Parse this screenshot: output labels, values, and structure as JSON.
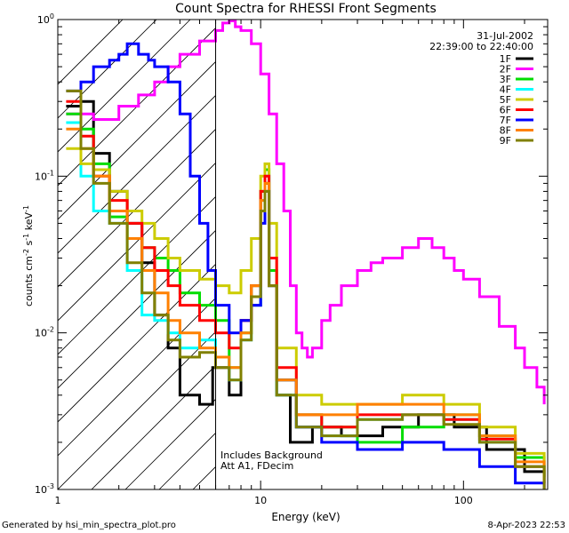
{
  "chart_data": {
    "type": "line",
    "title": "Count Spectra for RHESSI Front Segments",
    "xlabel": "Energy (keV)",
    "ylabel_parts": [
      "counts cm",
      "-2",
      " s",
      "-1",
      " keV",
      "-1"
    ],
    "xscale": "log",
    "yscale": "log",
    "xlim": [
      1.0,
      260
    ],
    "ylim": [
      0.001,
      1.0
    ],
    "x_tick_labels": [
      "1",
      "10",
      "100"
    ],
    "y_tick_labels": [
      {
        "mant": "10",
        "exp": "-3",
        "value": 0.001
      },
      {
        "mant": "10",
        "exp": "-2",
        "value": 0.01
      },
      {
        "mant": "10",
        "exp": "-1",
        "value": 0.1
      },
      {
        "mant": "10",
        "exp": "0",
        "value": 1.0
      }
    ],
    "date": "31-Jul-2002",
    "time_range": "22:39:00 to 22:40:00",
    "annotations": [
      "Includes Background",
      "Att A1, FDecim"
    ],
    "vertical_line_energy": 6.0,
    "legend_placement": "top-right",
    "series": [
      {
        "name": "1F",
        "color": "#000000",
        "values": [
          [
            1.1,
            0.28
          ],
          [
            1.3,
            0.3
          ],
          [
            1.5,
            0.14
          ],
          [
            1.8,
            0.08
          ],
          [
            2.2,
            0.05
          ],
          [
            2.6,
            0.028
          ],
          [
            3.0,
            0.013
          ],
          [
            3.5,
            0.008
          ],
          [
            4.0,
            0.004
          ],
          [
            5.0,
            0.0035
          ],
          [
            5.8,
            0.006
          ],
          [
            7.0,
            0.004
          ],
          [
            8.0,
            0.012
          ],
          [
            9.0,
            0.015
          ],
          [
            10.0,
            0.06
          ],
          [
            10.5,
            0.09
          ],
          [
            11.0,
            0.02
          ],
          [
            12.0,
            0.004
          ],
          [
            14.0,
            0.002
          ],
          [
            18.0,
            0.0025
          ],
          [
            25.0,
            0.0022
          ],
          [
            40.0,
            0.0025
          ],
          [
            60.0,
            0.003
          ],
          [
            90.0,
            0.0025
          ],
          [
            130.0,
            0.0018
          ],
          [
            200.0,
            0.0013
          ],
          [
            250.0,
            0.0011
          ]
        ]
      },
      {
        "name": "2F",
        "color": "#ff00ff",
        "values": [
          [
            1.1,
            0.25
          ],
          [
            1.5,
            0.23
          ],
          [
            2.0,
            0.28
          ],
          [
            2.5,
            0.33
          ],
          [
            3.0,
            0.4
          ],
          [
            3.5,
            0.5
          ],
          [
            4.0,
            0.6
          ],
          [
            5.0,
            0.73
          ],
          [
            6.0,
            0.85
          ],
          [
            6.5,
            0.95
          ],
          [
            7.0,
            0.98
          ],
          [
            7.5,
            0.9
          ],
          [
            8.0,
            0.85
          ],
          [
            9.0,
            0.7
          ],
          [
            10.0,
            0.45
          ],
          [
            11.0,
            0.25
          ],
          [
            12.0,
            0.12
          ],
          [
            13.0,
            0.06
          ],
          [
            14.0,
            0.02
          ],
          [
            15.0,
            0.01
          ],
          [
            16.0,
            0.008
          ],
          [
            17.0,
            0.007
          ],
          [
            18.0,
            0.008
          ],
          [
            20.0,
            0.012
          ],
          [
            22.0,
            0.015
          ],
          [
            25.0,
            0.02
          ],
          [
            30.0,
            0.025
          ],
          [
            35.0,
            0.028
          ],
          [
            40.0,
            0.03
          ],
          [
            50.0,
            0.035
          ],
          [
            60.0,
            0.04
          ],
          [
            70.0,
            0.035
          ],
          [
            80.0,
            0.03
          ],
          [
            90.0,
            0.025
          ],
          [
            100.0,
            0.022
          ],
          [
            120.0,
            0.017
          ],
          [
            150.0,
            0.011
          ],
          [
            180.0,
            0.008
          ],
          [
            200.0,
            0.006
          ],
          [
            230.0,
            0.0045
          ],
          [
            250.0,
            0.0035
          ]
        ]
      },
      {
        "name": "3F",
        "color": "#00dd00",
        "values": [
          [
            1.1,
            0.25
          ],
          [
            1.3,
            0.2
          ],
          [
            1.5,
            0.12
          ],
          [
            1.8,
            0.055
          ],
          [
            2.2,
            0.04
          ],
          [
            2.6,
            0.035
          ],
          [
            3.0,
            0.03
          ],
          [
            3.5,
            0.025
          ],
          [
            4.0,
            0.018
          ],
          [
            5.0,
            0.015
          ],
          [
            6.0,
            0.012
          ],
          [
            7.0,
            0.006
          ],
          [
            8.0,
            0.01
          ],
          [
            9.0,
            0.02
          ],
          [
            10.0,
            0.08
          ],
          [
            10.5,
            0.11
          ],
          [
            11.0,
            0.025
          ],
          [
            12.0,
            0.005
          ],
          [
            15.0,
            0.003
          ],
          [
            20.0,
            0.0025
          ],
          [
            30.0,
            0.002
          ],
          [
            50.0,
            0.0025
          ],
          [
            80.0,
            0.003
          ],
          [
            120.0,
            0.0022
          ],
          [
            180.0,
            0.0016
          ],
          [
            250.0,
            0.0012
          ]
        ]
      },
      {
        "name": "4F",
        "color": "#00ffff",
        "values": [
          [
            1.1,
            0.22
          ],
          [
            1.3,
            0.1
          ],
          [
            1.5,
            0.06
          ],
          [
            1.8,
            0.05
          ],
          [
            2.2,
            0.025
          ],
          [
            2.6,
            0.013
          ],
          [
            3.0,
            0.012
          ],
          [
            3.5,
            0.01
          ],
          [
            4.0,
            0.008
          ],
          [
            5.0,
            0.009
          ],
          [
            6.0,
            0.007
          ],
          [
            7.0,
            0.005
          ],
          [
            8.0,
            0.009
          ],
          [
            9.0,
            0.015
          ],
          [
            10.0,
            0.07
          ],
          [
            10.5,
            0.1
          ],
          [
            11.0,
            0.02
          ],
          [
            12.0,
            0.004
          ],
          [
            15.0,
            0.0025
          ],
          [
            20.0,
            0.0022
          ],
          [
            30.0,
            0.0028
          ],
          [
            50.0,
            0.003
          ],
          [
            80.0,
            0.0028
          ],
          [
            120.0,
            0.002
          ],
          [
            180.0,
            0.0014
          ],
          [
            250.0,
            0.0011
          ]
        ]
      },
      {
        "name": "5F",
        "color": "#cccc00",
        "values": [
          [
            1.1,
            0.15
          ],
          [
            1.3,
            0.12
          ],
          [
            1.5,
            0.11
          ],
          [
            1.8,
            0.08
          ],
          [
            2.2,
            0.06
          ],
          [
            2.6,
            0.05
          ],
          [
            3.0,
            0.04
          ],
          [
            3.5,
            0.03
          ],
          [
            4.0,
            0.025
          ],
          [
            5.0,
            0.022
          ],
          [
            6.0,
            0.02
          ],
          [
            7.0,
            0.018
          ],
          [
            8.0,
            0.025
          ],
          [
            9.0,
            0.04
          ],
          [
            10.0,
            0.1
          ],
          [
            10.5,
            0.12
          ],
          [
            11.0,
            0.05
          ],
          [
            12.0,
            0.008
          ],
          [
            15.0,
            0.004
          ],
          [
            20.0,
            0.0035
          ],
          [
            30.0,
            0.0035
          ],
          [
            50.0,
            0.004
          ],
          [
            80.0,
            0.0035
          ],
          [
            120.0,
            0.0025
          ],
          [
            180.0,
            0.0017
          ],
          [
            250.0,
            0.0012
          ]
        ]
      },
      {
        "name": "6F",
        "color": "#ff0000",
        "values": [
          [
            1.1,
            0.3
          ],
          [
            1.3,
            0.18
          ],
          [
            1.5,
            0.1
          ],
          [
            1.8,
            0.07
          ],
          [
            2.2,
            0.05
          ],
          [
            2.6,
            0.035
          ],
          [
            3.0,
            0.025
          ],
          [
            3.5,
            0.02
          ],
          [
            4.0,
            0.015
          ],
          [
            5.0,
            0.012
          ],
          [
            6.0,
            0.01
          ],
          [
            7.0,
            0.008
          ],
          [
            8.0,
            0.012
          ],
          [
            9.0,
            0.02
          ],
          [
            10.0,
            0.08
          ],
          [
            10.5,
            0.1
          ],
          [
            11.0,
            0.03
          ],
          [
            12.0,
            0.006
          ],
          [
            15.0,
            0.003
          ],
          [
            20.0,
            0.0025
          ],
          [
            30.0,
            0.003
          ],
          [
            50.0,
            0.003
          ],
          [
            80.0,
            0.0028
          ],
          [
            120.0,
            0.0021
          ],
          [
            180.0,
            0.0014
          ],
          [
            250.0,
            0.001
          ]
        ]
      },
      {
        "name": "7F",
        "color": "#0000ff",
        "values": [
          [
            1.1,
            0.35
          ],
          [
            1.3,
            0.4
          ],
          [
            1.5,
            0.5
          ],
          [
            1.8,
            0.55
          ],
          [
            2.0,
            0.6
          ],
          [
            2.2,
            0.7
          ],
          [
            2.5,
            0.6
          ],
          [
            2.8,
            0.55
          ],
          [
            3.0,
            0.5
          ],
          [
            3.5,
            0.4
          ],
          [
            4.0,
            0.25
          ],
          [
            4.5,
            0.1
          ],
          [
            5.0,
            0.05
          ],
          [
            5.5,
            0.025
          ],
          [
            6.0,
            0.015
          ],
          [
            7.0,
            0.01
          ],
          [
            8.0,
            0.012
          ],
          [
            9.0,
            0.015
          ],
          [
            10.0,
            0.05
          ],
          [
            10.5,
            0.08
          ],
          [
            11.0,
            0.02
          ],
          [
            12.0,
            0.005
          ],
          [
            15.0,
            0.0025
          ],
          [
            20.0,
            0.002
          ],
          [
            30.0,
            0.0018
          ],
          [
            50.0,
            0.002
          ],
          [
            80.0,
            0.0018
          ],
          [
            120.0,
            0.0014
          ],
          [
            180.0,
            0.0011
          ],
          [
            250.0,
            0.001
          ]
        ]
      },
      {
        "name": "8F",
        "color": "#ff8000",
        "values": [
          [
            1.1,
            0.2
          ],
          [
            1.3,
            0.15
          ],
          [
            1.5,
            0.1
          ],
          [
            1.8,
            0.06
          ],
          [
            2.2,
            0.04
          ],
          [
            2.6,
            0.025
          ],
          [
            3.0,
            0.018
          ],
          [
            3.5,
            0.012
          ],
          [
            4.0,
            0.01
          ],
          [
            5.0,
            0.008
          ],
          [
            6.0,
            0.007
          ],
          [
            7.0,
            0.006
          ],
          [
            8.0,
            0.01
          ],
          [
            9.0,
            0.02
          ],
          [
            10.0,
            0.07
          ],
          [
            10.5,
            0.09
          ],
          [
            11.0,
            0.02
          ],
          [
            12.0,
            0.005
          ],
          [
            15.0,
            0.003
          ],
          [
            20.0,
            0.003
          ],
          [
            30.0,
            0.0035
          ],
          [
            50.0,
            0.0035
          ],
          [
            80.0,
            0.003
          ],
          [
            120.0,
            0.0022
          ],
          [
            180.0,
            0.0015
          ],
          [
            250.0,
            0.0011
          ]
        ]
      },
      {
        "name": "9F",
        "color": "#808000",
        "values": [
          [
            1.1,
            0.35
          ],
          [
            1.3,
            0.15
          ],
          [
            1.5,
            0.09
          ],
          [
            1.8,
            0.05
          ],
          [
            2.2,
            0.028
          ],
          [
            2.6,
            0.018
          ],
          [
            3.0,
            0.013
          ],
          [
            3.5,
            0.009
          ],
          [
            4.0,
            0.007
          ],
          [
            5.0,
            0.0075
          ],
          [
            6.0,
            0.006
          ],
          [
            7.0,
            0.005
          ],
          [
            8.0,
            0.009
          ],
          [
            9.0,
            0.017
          ],
          [
            10.0,
            0.06
          ],
          [
            10.5,
            0.08
          ],
          [
            11.0,
            0.02
          ],
          [
            12.0,
            0.004
          ],
          [
            15.0,
            0.0025
          ],
          [
            20.0,
            0.0022
          ],
          [
            30.0,
            0.0028
          ],
          [
            50.0,
            0.003
          ],
          [
            80.0,
            0.0026
          ],
          [
            120.0,
            0.002
          ],
          [
            180.0,
            0.0014
          ],
          [
            250.0,
            0.001
          ]
        ]
      }
    ]
  },
  "footer": {
    "generated_by": "Generated by hsi_min_spectra_plot.pro",
    "generated_date": "8-Apr-2023 22:53"
  }
}
